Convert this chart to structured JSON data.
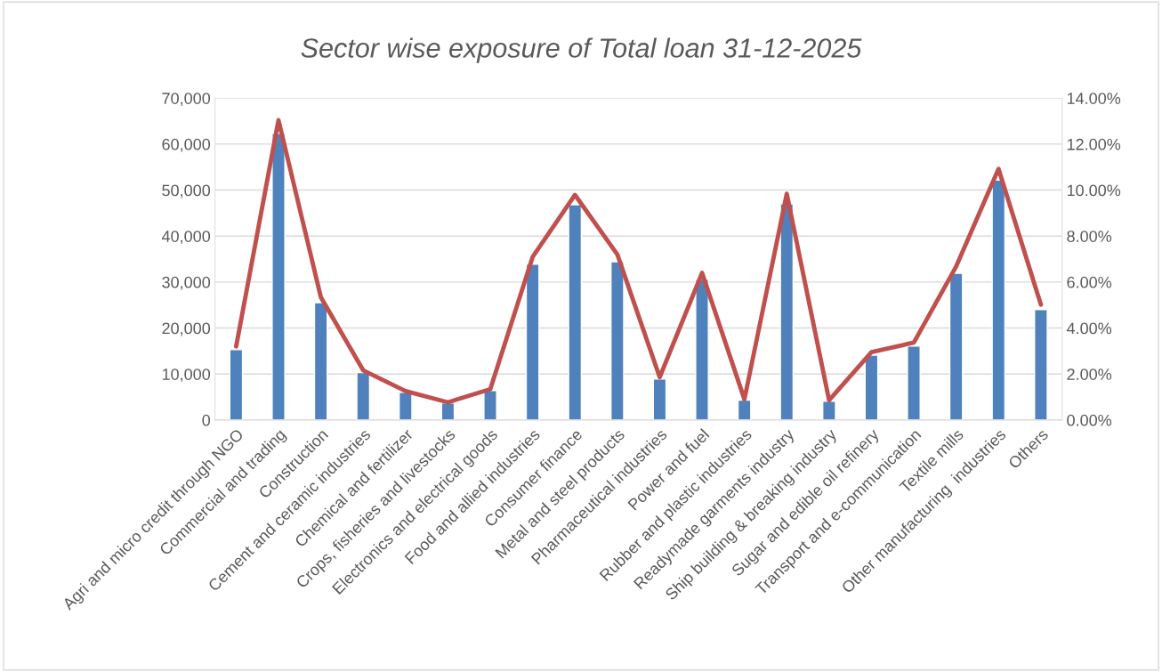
{
  "chart_data": {
    "type": "bar",
    "title": "Sector wise exposure of Total loan 31-12-2025",
    "categories": [
      "Agri and micro credit through NGO",
      "Commercial and trading",
      "Construction",
      "Cement and ceramic industries",
      "Chemical and fertilizer",
      "Crops, fisheries and livestocks",
      "Electronics and electrical goods",
      "Food and allied industries",
      "Consumer finance",
      "Metal and steel products",
      "Pharmaceutical industries",
      "Power and fuel",
      "Rubber and plastic industries",
      "Readymade garments industry",
      "Ship building & breaking industry",
      "Sugar and edible oil refinery",
      "Transport and e-communication",
      "Textile mills",
      "Other manufacturing  industries",
      "Others"
    ],
    "series": [
      {
        "color": "#4f81bd",
        "values": [
          15300,
          62300,
          25500,
          10300,
          6000,
          3700,
          6400,
          33900,
          46800,
          34400,
          8900,
          30600,
          4300,
          47000,
          4100,
          14100,
          16100,
          31900,
          52200,
          24000
        ]
      },
      {
        "type": "line",
        "axis": "y2",
        "color": "#c0504d",
        "line_style": "solid",
        "marker": "none",
        "values": [
          3.2,
          13.04,
          5.34,
          2.16,
          1.26,
          0.77,
          1.34,
          7.09,
          9.79,
          7.2,
          1.86,
          6.4,
          0.9,
          9.84,
          0.86,
          2.95,
          3.37,
          6.68,
          10.92,
          5.02
        ]
      }
    ],
    "ylim": [
      0,
      70000
    ],
    "yticks": [
      {
        "value": 0,
        "label": "0"
      },
      {
        "value": 10000,
        "label": "10,000"
      },
      {
        "value": 20000,
        "label": "20,000"
      },
      {
        "value": 30000,
        "label": "30,000"
      },
      {
        "value": 40000,
        "label": "40,000"
      },
      {
        "value": 50000,
        "label": "50,000"
      },
      {
        "value": 60000,
        "label": "60,000"
      },
      {
        "value": 70000,
        "label": "70,000"
      }
    ],
    "y2lim": [
      0,
      14
    ],
    "y2ticks": [
      {
        "value": 0,
        "label": "0.00%"
      },
      {
        "value": 2,
        "label": "2.00%"
      },
      {
        "value": 4,
        "label": "4.00%"
      },
      {
        "value": 6,
        "label": "6.00%"
      },
      {
        "value": 8,
        "label": "8.00%"
      },
      {
        "value": 10,
        "label": "10.00%"
      },
      {
        "value": 12,
        "label": "12.00%"
      },
      {
        "value": 14,
        "label": "14.00%"
      }
    ],
    "grid": "y"
  }
}
